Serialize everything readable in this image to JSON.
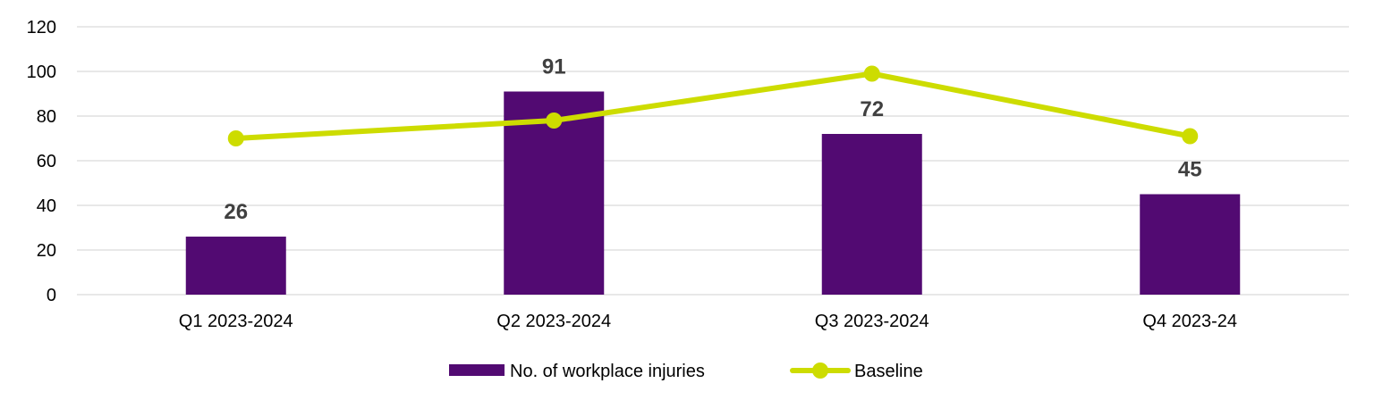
{
  "chart_data": {
    "type": "bar",
    "categories": [
      "Q1 2023-2024",
      "Q2 2023-2024",
      "Q3 2023-2024",
      "Q4 2023-24"
    ],
    "series": [
      {
        "name": "No. of workplace injuries",
        "type": "bar",
        "color": "#520a72",
        "values": [
          26,
          91,
          72,
          45
        ],
        "data_labels": [
          "26",
          "91",
          "72",
          "45"
        ]
      },
      {
        "name": "Baseline",
        "type": "line",
        "color": "#cddc00",
        "values": [
          70,
          78,
          99,
          71
        ]
      }
    ],
    "y_ticks": [
      "0",
      "20",
      "40",
      "60",
      "80",
      "100",
      "120"
    ],
    "ylim": [
      0,
      120
    ],
    "grid": true,
    "legend_position": "bottom"
  }
}
